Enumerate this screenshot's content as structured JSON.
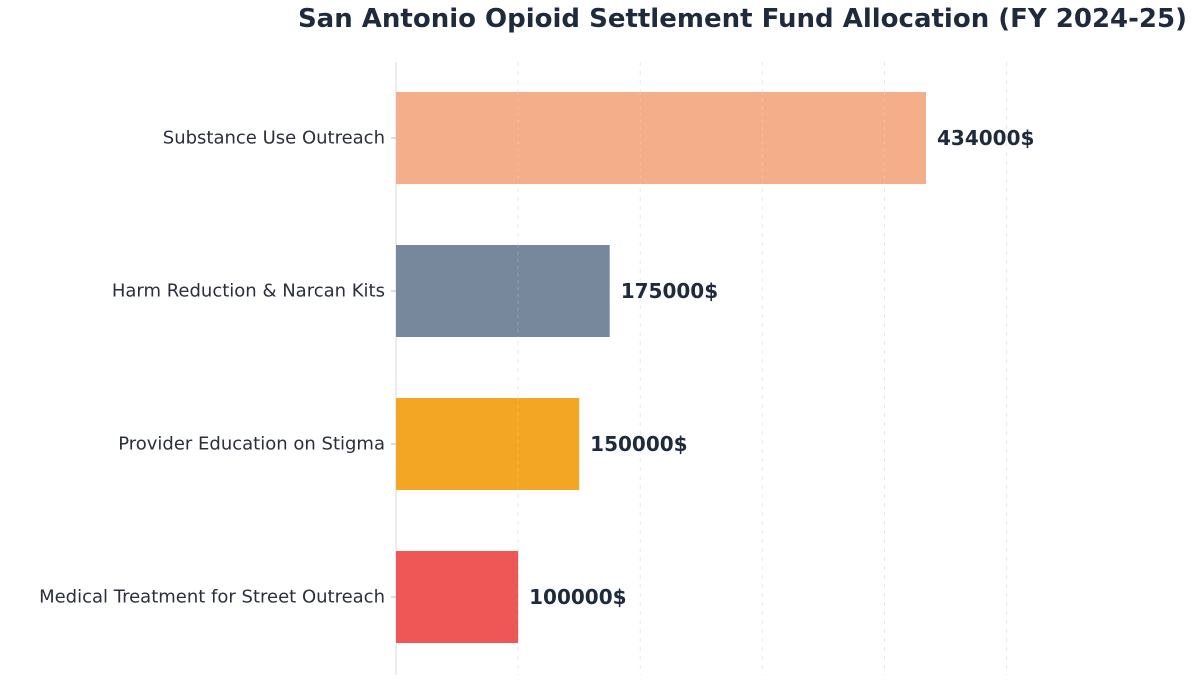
{
  "chart_data": {
    "type": "bar",
    "orientation": "horizontal",
    "title": "San Antonio Opioid Settlement Fund Allocation (FY 2024-25)",
    "xlabel": "",
    "ylabel": "",
    "xlim": [
      0,
      500000
    ],
    "grid": true,
    "legend": false,
    "categories": [
      "Substance Use Outreach",
      "Harm Reduction & Narcan Kits",
      "Provider Education on Stigma",
      "Medical Treatment for Street Outreach"
    ],
    "values": [
      434000,
      175000,
      150000,
      100000
    ],
    "value_labels": [
      "434000$",
      "175000$",
      "150000$",
      "100000$"
    ],
    "colors": [
      "#f4ae8a",
      "#77879c",
      "#f2a623",
      "#ef5757"
    ]
  }
}
